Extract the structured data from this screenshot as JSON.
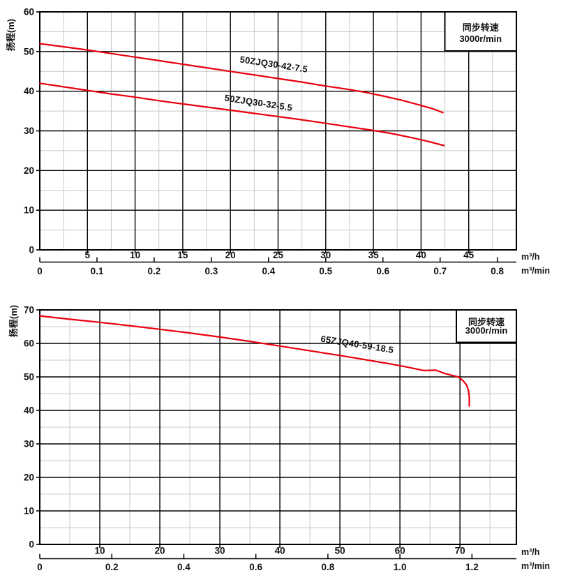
{
  "colors": {
    "curve_red": "#e8000e",
    "sync_blue": "#1668a8",
    "grid_major": "#000000",
    "grid_minor": "#c8c8c8",
    "text": "#111111",
    "background": "#ffffff"
  },
  "chart_data": [
    {
      "type": "line",
      "title": "",
      "ylabel": "扬程(m)",
      "annotation": {
        "line1": "同步转速",
        "line2": "3000r/min"
      },
      "x_axis": {
        "unit": "m³/h",
        "lim": [
          0,
          50
        ],
        "ticks": [
          5,
          10,
          15,
          20,
          25,
          30,
          35,
          40,
          45
        ],
        "major_step": 5,
        "minor_step": 2.5
      },
      "x_axis_secondary": {
        "unit": "m³/min",
        "ticks": [
          "0",
          "0.1",
          "0.2",
          "0.3",
          "0.4",
          "0.5",
          "0.6",
          "0.7",
          "0.8"
        ],
        "primary_per_unit": 60
      },
      "y_axis": {
        "lim": [
          0,
          60
        ],
        "ticks": [
          0,
          10,
          20,
          30,
          40,
          50,
          60
        ],
        "major_step": 10,
        "minor_step": 5
      },
      "grid": "on",
      "series": [
        {
          "name": "50ZJQ30-42-7.5",
          "label_anchor": {
            "x": 24.5,
            "y": 46.0,
            "angle": 8.5
          },
          "points": [
            [
              0,
              52.0
            ],
            [
              2.5,
              51.2
            ],
            [
              5,
              50.4
            ],
            [
              7.5,
              49.5
            ],
            [
              10,
              48.6
            ],
            [
              12.5,
              47.7
            ],
            [
              15,
              46.8
            ],
            [
              17.5,
              45.9
            ],
            [
              20,
              45.0
            ],
            [
              22.5,
              44.1
            ],
            [
              25,
              43.2
            ],
            [
              27.5,
              42.3
            ],
            [
              30,
              41.3
            ],
            [
              32,
              40.6
            ],
            [
              34,
              39.8
            ],
            [
              36,
              38.8
            ],
            [
              38,
              37.7
            ],
            [
              40,
              36.4
            ],
            [
              41.3,
              35.5
            ],
            [
              42.3,
              34.6
            ]
          ]
        },
        {
          "name": "50ZJQ30-32-5.5",
          "label_anchor": {
            "x": 22.9,
            "y": 36.3,
            "angle": 8.5
          },
          "points": [
            [
              0,
              42.0
            ],
            [
              2.5,
              41.1
            ],
            [
              5,
              40.2
            ],
            [
              7.5,
              39.3
            ],
            [
              10,
              38.5
            ],
            [
              12.5,
              37.6
            ],
            [
              15,
              36.8
            ],
            [
              17.5,
              36.0
            ],
            [
              20,
              35.2
            ],
            [
              22.5,
              34.4
            ],
            [
              25,
              33.6
            ],
            [
              27.5,
              32.8
            ],
            [
              30,
              31.9
            ],
            [
              32.5,
              31.0
            ],
            [
              35,
              30.1
            ],
            [
              37,
              29.3
            ],
            [
              39,
              28.3
            ],
            [
              40.8,
              27.3
            ],
            [
              42.4,
              26.3
            ]
          ]
        }
      ]
    },
    {
      "type": "line",
      "title": "",
      "ylabel": "扬程(m)",
      "annotation": {
        "line1": "同步转速",
        "line2": "3000r/min"
      },
      "x_axis": {
        "unit": "m³/h",
        "lim": [
          0,
          79.4
        ],
        "ticks": [
          10,
          20,
          30,
          40,
          50,
          60,
          70
        ],
        "major_step": 10,
        "minor_step": 5
      },
      "x_axis_secondary": {
        "unit": "m³/min",
        "ticks": [
          "0",
          "0.2",
          "0.4",
          "0.6",
          "0.8",
          "1.0",
          "1.2"
        ],
        "primary_per_unit": 60
      },
      "y_axis": {
        "lim": [
          0,
          70
        ],
        "ticks": [
          0,
          10,
          20,
          30,
          40,
          50,
          60,
          70
        ],
        "major_step": 10,
        "minor_step": 5
      },
      "grid": "on",
      "series": [
        {
          "name": "65ZJQ40-59-18.5",
          "label_anchor": {
            "x": 52.8,
            "y": 58.8,
            "angle": 9
          },
          "points": [
            [
              0,
              68.2
            ],
            [
              5,
              67.2
            ],
            [
              10,
              66.3
            ],
            [
              15,
              65.3
            ],
            [
              20,
              64.2
            ],
            [
              25,
              63.1
            ],
            [
              30,
              61.9
            ],
            [
              35,
              60.6
            ],
            [
              40,
              59.2
            ],
            [
              45,
              57.8
            ],
            [
              50,
              56.4
            ],
            [
              54,
              55.2
            ],
            [
              58,
              54.0
            ],
            [
              61,
              53.0
            ],
            [
              64,
              51.9
            ],
            [
              66,
              52.0
            ],
            [
              67.5,
              51.0
            ],
            [
              69,
              50.3
            ],
            [
              69.7,
              50.0
            ],
            [
              70.5,
              48.9
            ],
            [
              71.1,
              47.6
            ],
            [
              71.4,
              46.0
            ],
            [
              71.55,
              44.0
            ],
            [
              71.55,
              41.3
            ]
          ]
        }
      ]
    }
  ]
}
